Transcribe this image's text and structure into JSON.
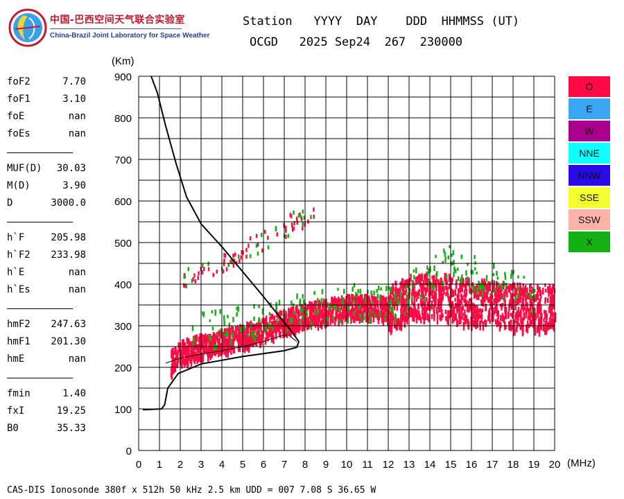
{
  "logo": {
    "icon": "globe-logo-icon",
    "cn_text": "中国-巴西空间天气联合实验室",
    "en_text": "China-Brazil Joint Laboratory for Space Weather"
  },
  "header": {
    "line1": "Station   YYYY  DAY    DDD  HHMMSS (UT)",
    "line2": "OCGD   2025 Sep24  267  230000"
  },
  "params": [
    [
      {
        "name": "foF2",
        "value": "7.70"
      },
      {
        "name": "foF1",
        "value": "3.10"
      },
      {
        "name": "foE",
        "value": "nan"
      },
      {
        "name": "foEs",
        "value": "nan"
      }
    ],
    [
      {
        "name": "MUF(D)",
        "value": "30.03"
      },
      {
        "name": "M(D)",
        "value": "3.90"
      },
      {
        "name": "D",
        "value": "3000.0"
      }
    ],
    [
      {
        "name": "h`F",
        "value": "205.98"
      },
      {
        "name": "h`F2",
        "value": "233.98"
      },
      {
        "name": "h`E",
        "value": "nan"
      },
      {
        "name": "h`Es",
        "value": "nan"
      }
    ],
    [
      {
        "name": "hmF2",
        "value": "247.63"
      },
      {
        "name": "hmF1",
        "value": "201.30"
      },
      {
        "name": "hmE",
        "value": "nan"
      }
    ],
    [
      {
        "name": "fmin",
        "value": "1.40"
      },
      {
        "name": "fxI",
        "value": "19.25"
      },
      {
        "name": "B0",
        "value": "35.33"
      }
    ]
  ],
  "legend": [
    {
      "label": "O",
      "color": "#ff0a45"
    },
    {
      "label": "E",
      "color": "#3aa6f2"
    },
    {
      "label": "W",
      "color": "#a8008c"
    },
    {
      "label": "NNE",
      "color": "#10ffff"
    },
    {
      "label": "NNW",
      "color": "#2a0ae6"
    },
    {
      "label": "SSE",
      "color": "#f5ff30"
    },
    {
      "label": "SSW",
      "color": "#ffb3a8"
    },
    {
      "label": "X",
      "color": "#14b014"
    }
  ],
  "footer": "CAS-DIS Ionosonde 380f x 512h 50 kHz 2.5 km UDD = 007 7.08 S 36.65 W",
  "chart_data": {
    "type": "scatter",
    "title": "",
    "xlabel": "(MHz)",
    "ylabel": "(Km)",
    "xlim": [
      0,
      20
    ],
    "ylim": [
      0,
      900
    ],
    "grid": true,
    "x_ticks": [
      "0",
      "1",
      "2",
      "3",
      "4",
      "5",
      "6",
      "7",
      "8",
      "9",
      "10",
      "11",
      "12",
      "13",
      "14",
      "15",
      "16",
      "17",
      "18",
      "19",
      "20"
    ],
    "y_ticks": [
      "0",
      "100",
      "200",
      "300",
      "400",
      "500",
      "600",
      "700",
      "800",
      "900"
    ],
    "legend_position": "right",
    "echo_bands": [
      {
        "name": "O",
        "color": "#ff0a45",
        "points": [
          [
            1.5,
            215
          ],
          [
            2,
            240
          ],
          [
            3,
            255
          ],
          [
            4,
            265
          ],
          [
            5,
            280
          ],
          [
            6,
            295
          ],
          [
            7,
            315
          ],
          [
            8,
            330
          ],
          [
            9,
            340
          ],
          [
            10,
            350
          ],
          [
            11,
            350
          ],
          [
            12,
            345
          ],
          [
            13,
            370
          ],
          [
            14,
            380
          ],
          [
            15,
            370
          ],
          [
            16,
            360
          ],
          [
            17,
            360
          ],
          [
            18,
            350
          ],
          [
            19,
            350
          ],
          [
            20,
            345
          ]
        ]
      },
      {
        "name": "X",
        "color": "#14b014",
        "points": [
          [
            2.5,
            290
          ],
          [
            4,
            300
          ],
          [
            6,
            320
          ],
          [
            8,
            345
          ],
          [
            10,
            360
          ],
          [
            12,
            350
          ],
          [
            14,
            420
          ],
          [
            15,
            460
          ],
          [
            16,
            430
          ],
          [
            17,
            410
          ],
          [
            19,
            380
          ]
        ]
      }
    ],
    "profile_curve": [
      [
        0.2,
        98
      ],
      [
        1.1,
        100
      ],
      [
        1.25,
        110
      ],
      [
        1.4,
        150
      ],
      [
        1.9,
        185
      ],
      [
        3,
        208
      ],
      [
        4,
        217
      ],
      [
        5,
        226
      ],
      [
        6,
        233
      ],
      [
        7,
        240
      ],
      [
        7.6,
        248
      ],
      [
        7.7,
        262
      ],
      [
        7.3,
        290
      ],
      [
        6.8,
        320
      ],
      [
        6,
        370
      ],
      [
        5,
        430
      ],
      [
        4,
        490
      ],
      [
        3,
        545
      ],
      [
        2.3,
        610
      ],
      [
        1.8,
        690
      ],
      [
        1.3,
        780
      ],
      [
        0.9,
        860
      ],
      [
        0.6,
        900
      ]
    ],
    "trace_curve": [
      [
        1.3,
        210
      ],
      [
        2,
        222
      ],
      [
        3,
        232
      ],
      [
        4,
        240
      ],
      [
        5,
        250
      ],
      [
        6,
        262
      ],
      [
        6.8,
        275
      ],
      [
        7.2,
        278
      ],
      [
        7.6,
        262
      ]
    ]
  }
}
